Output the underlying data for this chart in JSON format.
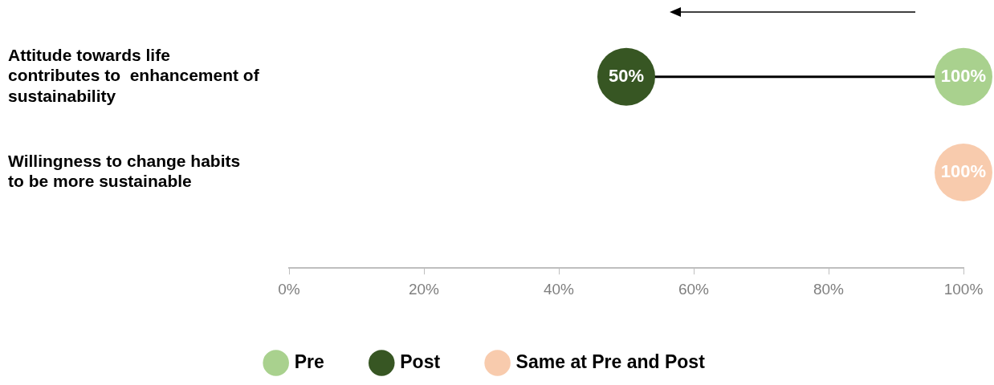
{
  "chart_data": {
    "type": "scatter",
    "orientation": "horizontal",
    "categories": [
      "Attitude towards life contributes to  enhancement of sustainability",
      "Willingness to change habits to be more sustainable"
    ],
    "xlim": [
      0,
      100
    ],
    "xticks": [
      {
        "value": 0,
        "label": "0%"
      },
      {
        "value": 20,
        "label": "20%"
      },
      {
        "value": 40,
        "label": "40%"
      },
      {
        "value": 60,
        "label": "60%"
      },
      {
        "value": 80,
        "label": "80%"
      },
      {
        "value": 100,
        "label": "100%"
      }
    ],
    "series": [
      {
        "name": "Pre",
        "color": "#a9d18e",
        "values": [
          100,
          null
        ],
        "value_labels": [
          "100%",
          null
        ]
      },
      {
        "name": "Post",
        "color": "#375623",
        "values": [
          50,
          null
        ],
        "value_labels": [
          "50%",
          null
        ]
      },
      {
        "name": "Same at Pre and Post",
        "color": "#f8cbad",
        "values": [
          null,
          100
        ],
        "value_labels": [
          null,
          "100%"
        ]
      }
    ],
    "grid": false,
    "legend": "bottom",
    "marker": "circle"
  }
}
